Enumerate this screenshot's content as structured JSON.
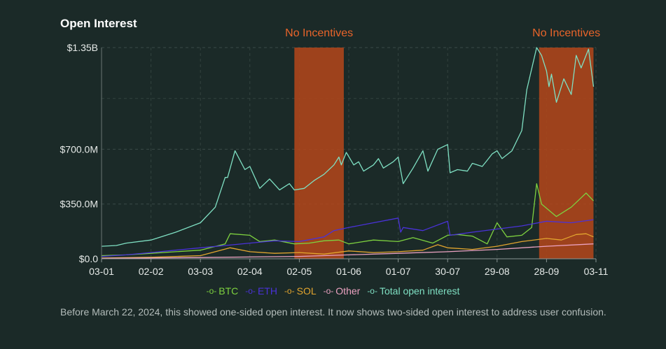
{
  "chart_data": {
    "type": "line",
    "title": "Open Interest",
    "y_ticks": [
      {
        "label": "$0.0",
        "value": 0
      },
      {
        "label": "$350.0M",
        "value": 350
      },
      {
        "label": "$700.0M",
        "value": 700
      },
      {
        "label": "$1.35B",
        "value": 1350
      }
    ],
    "ylim": [
      0,
      1350
    ],
    "y_unit": "M",
    "x_ticks": [
      "03-01",
      "02-02",
      "03-03",
      "02-04",
      "02-05",
      "01-06",
      "01-07",
      "30-07",
      "29-08",
      "28-09",
      "03-11"
    ],
    "x_range": [
      0,
      10
    ],
    "shaded_regions": [
      {
        "label": "No Incentives",
        "x_start": 3.9,
        "x_end": 4.9,
        "color": "#b5461a"
      },
      {
        "label": "No Incentives",
        "x_start": 8.85,
        "x_end": 9.95,
        "color": "#b5461a"
      }
    ],
    "series": [
      {
        "name": "BTC",
        "color": "#7ed23f",
        "x": [
          0,
          0.5,
          1,
          1.5,
          2,
          2.5,
          2.6,
          3,
          3.2,
          3.5,
          3.9,
          4.2,
          4.5,
          4.8,
          5,
          5.5,
          6,
          6.3,
          6.7,
          7,
          7.2,
          7.5,
          7.8,
          8,
          8.2,
          8.5,
          8.7,
          8.8,
          8.9,
          9.2,
          9.5,
          9.7,
          9.8,
          9.95
        ],
        "values": [
          20,
          25,
          35,
          45,
          55,
          95,
          160,
          150,
          110,
          120,
          95,
          100,
          115,
          120,
          95,
          120,
          110,
          135,
          100,
          150,
          155,
          145,
          95,
          230,
          140,
          150,
          200,
          480,
          350,
          270,
          330,
          390,
          420,
          370
        ]
      },
      {
        "name": "ETH",
        "color": "#4a32d9",
        "x": [
          0,
          0.5,
          1,
          1.5,
          2,
          2.5,
          3,
          3.5,
          4,
          4.5,
          4.7,
          5,
          5.5,
          6,
          6.05,
          6.1,
          6.5,
          7,
          7.05,
          7.5,
          8,
          8.5,
          9,
          9.5,
          9.95
        ],
        "values": [
          15,
          25,
          40,
          55,
          70,
          85,
          100,
          115,
          110,
          140,
          180,
          200,
          230,
          260,
          170,
          200,
          180,
          240,
          150,
          170,
          190,
          210,
          240,
          230,
          250
        ]
      },
      {
        "name": "SOL",
        "color": "#e2a52e",
        "x": [
          0,
          1,
          2,
          2.6,
          3,
          3.5,
          4,
          4.5,
          5,
          5.5,
          6,
          6.5,
          6.8,
          7,
          7.5,
          8,
          8.5,
          9,
          9.3,
          9.6,
          9.8,
          9.95
        ],
        "values": [
          5,
          10,
          20,
          70,
          45,
          35,
          40,
          30,
          50,
          40,
          45,
          55,
          90,
          70,
          60,
          80,
          110,
          130,
          120,
          155,
          160,
          140
        ]
      },
      {
        "name": "Other",
        "color": "#eba2c1",
        "x": [
          0,
          2,
          4,
          5,
          6,
          7,
          8,
          9,
          9.95
        ],
        "values": [
          3,
          8,
          15,
          25,
          35,
          45,
          60,
          80,
          95
        ]
      },
      {
        "name": "Total open interest",
        "color": "#7fe0c3",
        "x": [
          0,
          0.3,
          0.5,
          1,
          1.5,
          2,
          2.3,
          2.5,
          2.55,
          2.7,
          2.9,
          3,
          3.2,
          3.4,
          3.6,
          3.8,
          3.9,
          4.1,
          4.3,
          4.5,
          4.7,
          4.8,
          4.85,
          4.95,
          5.1,
          5.2,
          5.3,
          5.5,
          5.6,
          5.7,
          5.9,
          6,
          6.1,
          6.3,
          6.5,
          6.6,
          6.8,
          7,
          7.05,
          7.2,
          7.4,
          7.5,
          7.7,
          7.8,
          7.9,
          8,
          8.1,
          8.3,
          8.5,
          8.6,
          8.8,
          8.9,
          9.0,
          9.05,
          9.1,
          9.2,
          9.35,
          9.5,
          9.6,
          9.7,
          9.85,
          9.95
        ],
        "values": [
          80,
          85,
          100,
          120,
          170,
          230,
          330,
          520,
          520,
          690,
          570,
          590,
          450,
          510,
          440,
          480,
          440,
          450,
          500,
          540,
          600,
          650,
          600,
          680,
          600,
          620,
          560,
          600,
          640,
          580,
          620,
          650,
          480,
          580,
          690,
          560,
          700,
          730,
          550,
          570,
          560,
          610,
          590,
          630,
          670,
          690,
          640,
          690,
          820,
          1080,
          1350,
          1300,
          1200,
          1100,
          1180,
          1000,
          1150,
          1050,
          1300,
          1220,
          1340,
          1100
        ]
      }
    ],
    "legend_position": "bottom-center"
  },
  "footnote": "Before March 22, 2024, this showed one-sided open interest. It now shows two-sided open interest to address user confusion."
}
